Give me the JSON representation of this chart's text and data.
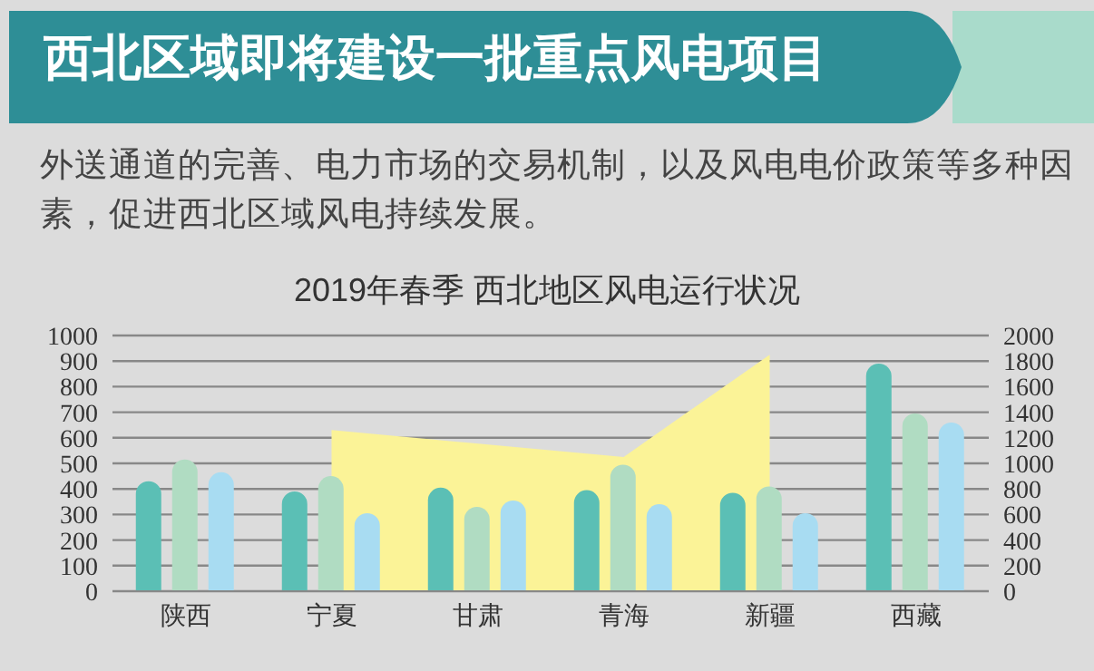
{
  "chart_data": {
    "type": "bar",
    "title": "西北区域即将建设一批重点风电项目",
    "subtitle": "外送通道的完善、电力市场的交易机制，以及风电电价政策等多种因素，促进西北区域风电持续发展。",
    "annotations": [
      "2019年春季 西北地区风电运行状况"
    ],
    "categories": [
      "陕西",
      "宁夏",
      "甘肃",
      "青海",
      "新疆",
      "西藏"
    ],
    "series": [
      {
        "type": "area",
        "axis": "y2",
        "color": "#fbf397",
        "values": [
          null,
          1260,
          null,
          1050,
          1850,
          null
        ]
      },
      {
        "color": "#5bbfb5",
        "values": [
          430,
          390,
          405,
          395,
          385,
          890
        ]
      },
      {
        "color": "#b0dcc2",
        "values": [
          515,
          450,
          330,
          495,
          410,
          695
        ]
      },
      {
        "color": "#a8dcf2",
        "values": [
          465,
          305,
          355,
          340,
          305,
          660
        ]
      }
    ],
    "ylim": [
      0,
      1000
    ],
    "yticks": [
      0,
      100,
      200,
      300,
      400,
      500,
      600,
      700,
      800,
      900,
      1000
    ],
    "y2lim": [
      0,
      2000
    ],
    "y2ticks": [
      0,
      200,
      400,
      600,
      800,
      1000,
      1200,
      1400,
      1600,
      1800,
      2000
    ],
    "grid": "y"
  }
}
